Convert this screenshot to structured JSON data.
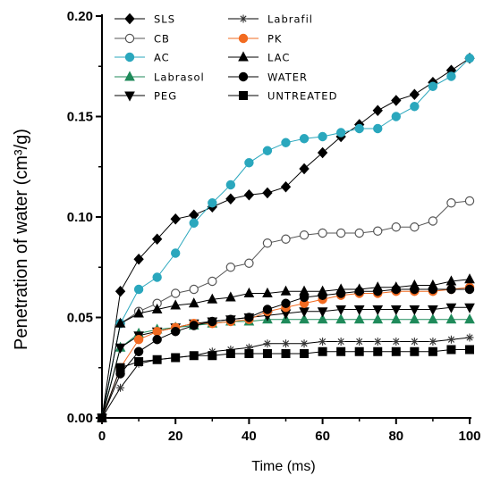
{
  "chart_data": {
    "type": "line",
    "title": "",
    "xlabel": "Time (ms)",
    "ylabel": "Penetration of water  (cm³/g)",
    "xlim": [
      0,
      100
    ],
    "ylim": [
      0,
      0.2
    ],
    "xticks": [
      "0",
      "20",
      "40",
      "60",
      "80",
      "100"
    ],
    "yticks": [
      "0.00",
      "0.05",
      "0.10",
      "0.15",
      "0.20"
    ],
    "grid": false,
    "legend_position": "top",
    "series": [
      {
        "name": "SLS",
        "marker": "diamond",
        "fill": "#000000",
        "stroke": "#000000",
        "x": [
          0,
          5,
          10,
          15,
          20,
          25,
          30,
          35,
          40,
          45,
          50,
          55,
          60,
          65,
          70,
          75,
          80,
          85,
          90,
          95,
          100
        ],
        "y": [
          0,
          0.063,
          0.079,
          0.089,
          0.099,
          0.101,
          0.105,
          0.109,
          0.111,
          0.112,
          0.115,
          0.124,
          0.132,
          0.14,
          0.146,
          0.153,
          0.158,
          0.161,
          0.167,
          0.173,
          0.179
        ]
      },
      {
        "name": "CB",
        "marker": "circle",
        "fill": "#ffffff",
        "stroke": "#555555",
        "x": [
          0,
          5,
          10,
          15,
          20,
          25,
          30,
          35,
          40,
          45,
          50,
          55,
          60,
          65,
          70,
          75,
          80,
          85,
          90,
          95,
          100
        ],
        "y": [
          0,
          0.047,
          0.053,
          0.057,
          0.062,
          0.064,
          0.068,
          0.075,
          0.077,
          0.087,
          0.089,
          0.091,
          0.092,
          0.092,
          0.092,
          0.093,
          0.095,
          0.095,
          0.098,
          0.107,
          0.108
        ]
      },
      {
        "name": "AC",
        "marker": "circle",
        "fill": "#2aa7bd",
        "stroke": "#2aa7bd",
        "x": [
          0,
          5,
          10,
          15,
          20,
          25,
          30,
          35,
          40,
          45,
          50,
          55,
          60,
          65,
          70,
          75,
          80,
          85,
          90,
          95,
          100
        ],
        "y": [
          0,
          0.047,
          0.064,
          0.07,
          0.082,
          0.097,
          0.107,
          0.116,
          0.127,
          0.133,
          0.137,
          0.139,
          0.14,
          0.142,
          0.144,
          0.144,
          0.15,
          0.155,
          0.165,
          0.17,
          0.179
        ]
      },
      {
        "name": "Labrasol",
        "marker": "triangle-up",
        "fill": "#1f8a5a",
        "stroke": "#1f8a5a",
        "x": [
          0,
          5,
          10,
          15,
          20,
          25,
          30,
          35,
          40,
          45,
          50,
          55,
          60,
          65,
          70,
          75,
          80,
          85,
          90,
          95,
          100
        ],
        "y": [
          0,
          0.035,
          0.042,
          0.044,
          0.045,
          0.046,
          0.047,
          0.048,
          0.048,
          0.049,
          0.049,
          0.049,
          0.049,
          0.049,
          0.049,
          0.049,
          0.049,
          0.049,
          0.049,
          0.049,
          0.049
        ]
      },
      {
        "name": "PEG",
        "marker": "triangle-down",
        "fill": "#000000",
        "stroke": "#000000",
        "x": [
          0,
          5,
          10,
          15,
          20,
          25,
          30,
          35,
          40,
          45,
          50,
          55,
          60,
          65,
          70,
          75,
          80,
          85,
          90,
          95,
          100
        ],
        "y": [
          0,
          0.035,
          0.041,
          0.043,
          0.045,
          0.047,
          0.048,
          0.049,
          0.05,
          0.051,
          0.052,
          0.053,
          0.053,
          0.054,
          0.054,
          0.054,
          0.054,
          0.054,
          0.054,
          0.055,
          0.055
        ]
      },
      {
        "name": "Labrafil",
        "marker": "asterisk",
        "fill": "#333333",
        "stroke": "#333333",
        "x": [
          0,
          5,
          10,
          15,
          20,
          25,
          30,
          35,
          40,
          45,
          50,
          55,
          60,
          65,
          70,
          75,
          80,
          85,
          90,
          95,
          100
        ],
        "y": [
          0,
          0.015,
          0.027,
          0.029,
          0.03,
          0.031,
          0.033,
          0.034,
          0.035,
          0.037,
          0.037,
          0.037,
          0.038,
          0.038,
          0.038,
          0.038,
          0.038,
          0.038,
          0.038,
          0.039,
          0.04
        ]
      },
      {
        "name": "PK",
        "marker": "circle",
        "fill": "#f26b21",
        "stroke": "#f26b21",
        "x": [
          0,
          5,
          10,
          15,
          20,
          25,
          30,
          35,
          40,
          45,
          50,
          55,
          60,
          65,
          70,
          75,
          80,
          85,
          90,
          95,
          100
        ],
        "y": [
          0,
          0.025,
          0.039,
          0.043,
          0.045,
          0.047,
          0.047,
          0.048,
          0.049,
          0.053,
          0.055,
          0.057,
          0.059,
          0.061,
          0.062,
          0.062,
          0.063,
          0.063,
          0.063,
          0.064,
          0.065
        ]
      },
      {
        "name": "LAC",
        "marker": "triangle-up",
        "fill": "#000000",
        "stroke": "#000000",
        "x": [
          0,
          5,
          10,
          15,
          20,
          25,
          30,
          35,
          40,
          45,
          50,
          55,
          60,
          65,
          70,
          75,
          80,
          85,
          90,
          95,
          100
        ],
        "y": [
          0,
          0.047,
          0.052,
          0.054,
          0.056,
          0.057,
          0.059,
          0.06,
          0.062,
          0.062,
          0.063,
          0.063,
          0.063,
          0.064,
          0.064,
          0.065,
          0.065,
          0.066,
          0.066,
          0.068,
          0.069
        ]
      },
      {
        "name": "WATER",
        "marker": "circle",
        "fill": "#000000",
        "stroke": "#000000",
        "x": [
          0,
          5,
          10,
          15,
          20,
          25,
          30,
          35,
          40,
          45,
          50,
          55,
          60,
          65,
          70,
          75,
          80,
          85,
          90,
          95,
          100
        ],
        "y": [
          0,
          0.022,
          0.033,
          0.039,
          0.043,
          0.046,
          0.048,
          0.049,
          0.05,
          0.054,
          0.057,
          0.06,
          0.061,
          0.062,
          0.063,
          0.063,
          0.064,
          0.064,
          0.064,
          0.064,
          0.064
        ]
      },
      {
        "name": "UNTREATED",
        "marker": "square",
        "fill": "#000000",
        "stroke": "#000000",
        "x": [
          0,
          5,
          10,
          15,
          20,
          25,
          30,
          35,
          40,
          45,
          50,
          55,
          60,
          65,
          70,
          75,
          80,
          85,
          90,
          95,
          100
        ],
        "y": [
          0,
          0.025,
          0.028,
          0.029,
          0.03,
          0.031,
          0.031,
          0.032,
          0.032,
          0.032,
          0.032,
          0.032,
          0.033,
          0.033,
          0.033,
          0.033,
          0.033,
          0.033,
          0.033,
          0.034,
          0.034
        ]
      }
    ]
  }
}
